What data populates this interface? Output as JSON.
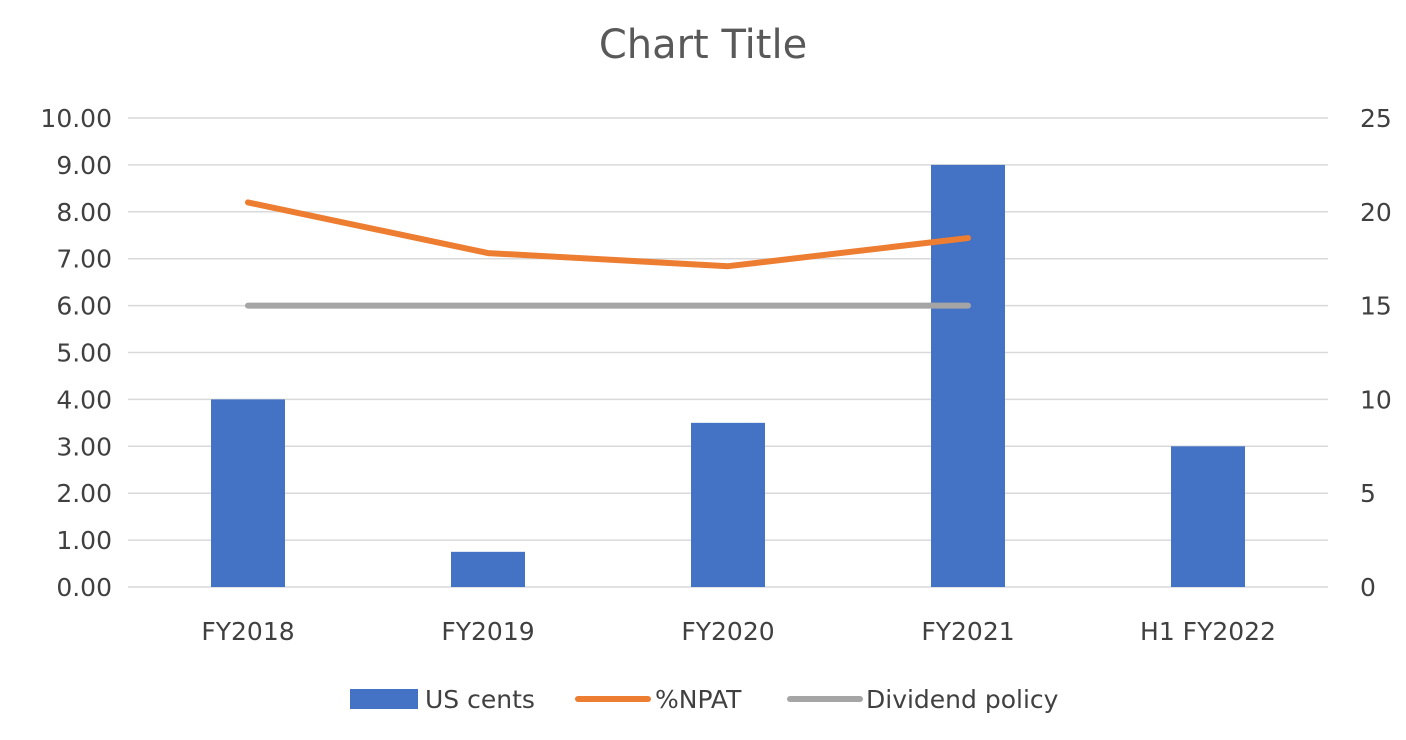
{
  "chart_data": {
    "type": "bar",
    "title": "Chart Title",
    "categories": [
      "FY2018",
      "FY2019",
      "FY2020",
      "FY2021",
      "H1 FY2022"
    ],
    "y_left": {
      "ylim": [
        0,
        10
      ],
      "ticks": [
        "10.00",
        "9.00",
        "8.00",
        "7.00",
        "6.00",
        "5.00",
        "4.00",
        "3.00",
        "2.00",
        "1.00",
        "0.00"
      ]
    },
    "y_right": {
      "ylim": [
        0,
        25
      ],
      "ticks": [
        "25",
        "20",
        "15",
        "10",
        "5",
        "0"
      ]
    },
    "grid": true,
    "legend_position": "bottom",
    "series": [
      {
        "name": "US cents",
        "kind": "bar",
        "axis": "left",
        "color": "#4472C4",
        "values": [
          4.0,
          0.75,
          3.5,
          9.0,
          3.0
        ]
      },
      {
        "name": "%NPAT",
        "kind": "line",
        "axis": "right",
        "color": "#ED7D31",
        "values": [
          20.5,
          17.8,
          17.1,
          18.6,
          null
        ]
      },
      {
        "name": "Dividend policy",
        "kind": "line",
        "axis": "right",
        "color": "#A5A5A5",
        "values": [
          15,
          15,
          15,
          15,
          null
        ]
      }
    ]
  }
}
